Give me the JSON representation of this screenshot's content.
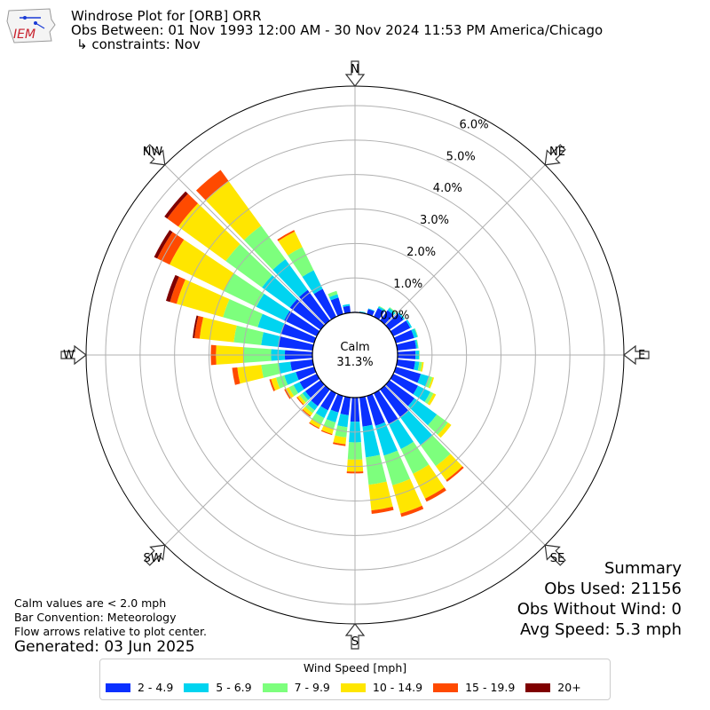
{
  "header": {
    "logo_text": "IEM",
    "title": "Windrose Plot for [ORB] ORR",
    "subtitle": "Obs Between: 01 Nov 1993 12:00 AM - 30 Nov 2024 11:53 PM America/Chicago",
    "constraints": "↳ constraints: Nov"
  },
  "notes": {
    "calm_note": "Calm values are < 2.0 mph",
    "convention": "Bar Convention: Meteorology",
    "flow": "Flow arrows relative to plot center.",
    "generated": "Generated: 03 Jun 2025"
  },
  "summary": {
    "heading": "Summary",
    "obs_used": "Obs Used: 21156",
    "obs_without_wind": "Obs Without Wind: 0",
    "avg_speed": "Avg Speed: 5.3 mph"
  },
  "legend": {
    "title": "Wind Speed [mph]",
    "items": [
      {
        "label": "2 - 4.9",
        "color": "#0a30ff"
      },
      {
        "label": "5 - 6.9",
        "color": "#00d4f0"
      },
      {
        "label": "7 - 9.9",
        "color": "#7dff7d"
      },
      {
        "label": "10 - 14.9",
        "color": "#ffe600"
      },
      {
        "label": "15 - 19.9",
        "color": "#ff4a00"
      },
      {
        "label": "20+",
        "color": "#7f0000"
      }
    ]
  },
  "chart_data": {
    "type": "windrose",
    "title": "Windrose Plot for [ORB] ORR",
    "calm_label": "Calm",
    "calm_percent_label": "31.3%",
    "calm_percent": 31.3,
    "radial_unit": "%",
    "rlim": [
      0,
      6.5
    ],
    "radial_ticks": [
      0,
      1,
      2,
      3,
      4,
      5,
      6
    ],
    "radial_tick_labels": [
      "0.0%",
      "1.0%",
      "2.0%",
      "3.0%",
      "4.0%",
      "5.0%",
      "6.0%"
    ],
    "compass_labels": [
      "N",
      "NE",
      "E",
      "SE",
      "S",
      "SW",
      "W",
      "NW"
    ],
    "grid": true,
    "sectors_deg": [
      0,
      10,
      20,
      30,
      40,
      50,
      60,
      70,
      80,
      90,
      100,
      110,
      120,
      130,
      140,
      150,
      160,
      170,
      180,
      190,
      200,
      210,
      220,
      230,
      240,
      250,
      260,
      270,
      280,
      290,
      300,
      310,
      320,
      330,
      340,
      350
    ],
    "speed_bins": [
      "2 - 4.9",
      "5 - 6.9",
      "7 - 9.9",
      "10 - 14.9",
      "15 - 19.9",
      "20+"
    ],
    "bin_colors": [
      "#0a30ff",
      "#00d4f0",
      "#7dff7d",
      "#ffe600",
      "#ff4a00",
      "#7f0000"
    ],
    "percentages": [
      [
        0.02,
        0.0,
        0.0,
        0.0,
        0.0,
        0.0
      ],
      [
        0.02,
        0.02,
        0.0,
        0.0,
        0.0,
        0.0
      ],
      [
        0.15,
        0.02,
        0.0,
        0.0,
        0.0,
        0.0
      ],
      [
        0.28,
        0.05,
        0.02,
        0.0,
        0.0,
        0.0
      ],
      [
        0.37,
        0.08,
        0.03,
        0.0,
        0.0,
        0.0
      ],
      [
        0.5,
        0.05,
        0.0,
        0.0,
        0.0,
        0.0
      ],
      [
        0.55,
        0.05,
        0.0,
        0.0,
        0.0,
        0.0
      ],
      [
        0.55,
        0.1,
        0.02,
        0.0,
        0.0,
        0.0
      ],
      [
        0.55,
        0.05,
        0.02,
        0.0,
        0.0,
        0.0
      ],
      [
        0.52,
        0.1,
        0.02,
        0.0,
        0.0,
        0.0
      ],
      [
        0.52,
        0.12,
        0.08,
        0.05,
        0.0,
        0.0
      ],
      [
        0.75,
        0.25,
        0.1,
        0.05,
        0.0,
        0.0
      ],
      [
        0.8,
        0.4,
        0.1,
        0.08,
        0.0,
        0.0
      ],
      [
        0.9,
        0.8,
        0.4,
        0.12,
        0.0,
        0.0
      ],
      [
        1.0,
        1.0,
        0.75,
        0.5,
        0.06,
        0.0
      ],
      [
        1.0,
        0.8,
        0.8,
        0.8,
        0.1,
        0.0
      ],
      [
        0.9,
        0.9,
        0.9,
        0.85,
        0.1,
        0.0
      ],
      [
        0.85,
        0.9,
        0.8,
        0.75,
        0.1,
        0.0
      ],
      [
        0.7,
        0.6,
        0.5,
        0.35,
        0.05,
        0.0
      ],
      [
        0.52,
        0.35,
        0.3,
        0.2,
        0.05,
        0.0
      ],
      [
        0.5,
        0.3,
        0.2,
        0.15,
        0.03,
        0.0
      ],
      [
        0.55,
        0.25,
        0.2,
        0.12,
        0.03,
        0.0
      ],
      [
        0.6,
        0.15,
        0.1,
        0.1,
        0.03,
        0.0
      ],
      [
        0.55,
        0.1,
        0.1,
        0.08,
        0.03,
        0.0
      ],
      [
        0.55,
        0.2,
        0.15,
        0.1,
        0.05,
        0.0
      ],
      [
        0.55,
        0.35,
        0.25,
        0.15,
        0.05,
        0.0
      ],
      [
        0.65,
        0.35,
        0.5,
        0.7,
        0.15,
        0.0
      ],
      [
        0.8,
        0.4,
        0.8,
        0.8,
        0.15,
        0.0
      ],
      [
        1.0,
        0.5,
        0.8,
        1.0,
        0.15,
        0.05
      ],
      [
        1.0,
        0.7,
        1.05,
        1.4,
        0.2,
        0.12
      ],
      [
        1.05,
        0.9,
        1.05,
        1.75,
        0.4,
        0.1
      ],
      [
        1.1,
        1.0,
        1.3,
        1.7,
        0.4,
        0.1
      ],
      [
        1.1,
        1.1,
        1.2,
        1.6,
        0.4,
        0.0
      ],
      [
        0.9,
        0.6,
        0.75,
        0.5,
        0.05,
        0.0
      ],
      [
        0.5,
        0.1,
        0.1,
        0.0,
        0.0,
        0.0
      ],
      [
        0.2,
        0.05,
        0.0,
        0.0,
        0.0,
        0.0
      ]
    ]
  }
}
